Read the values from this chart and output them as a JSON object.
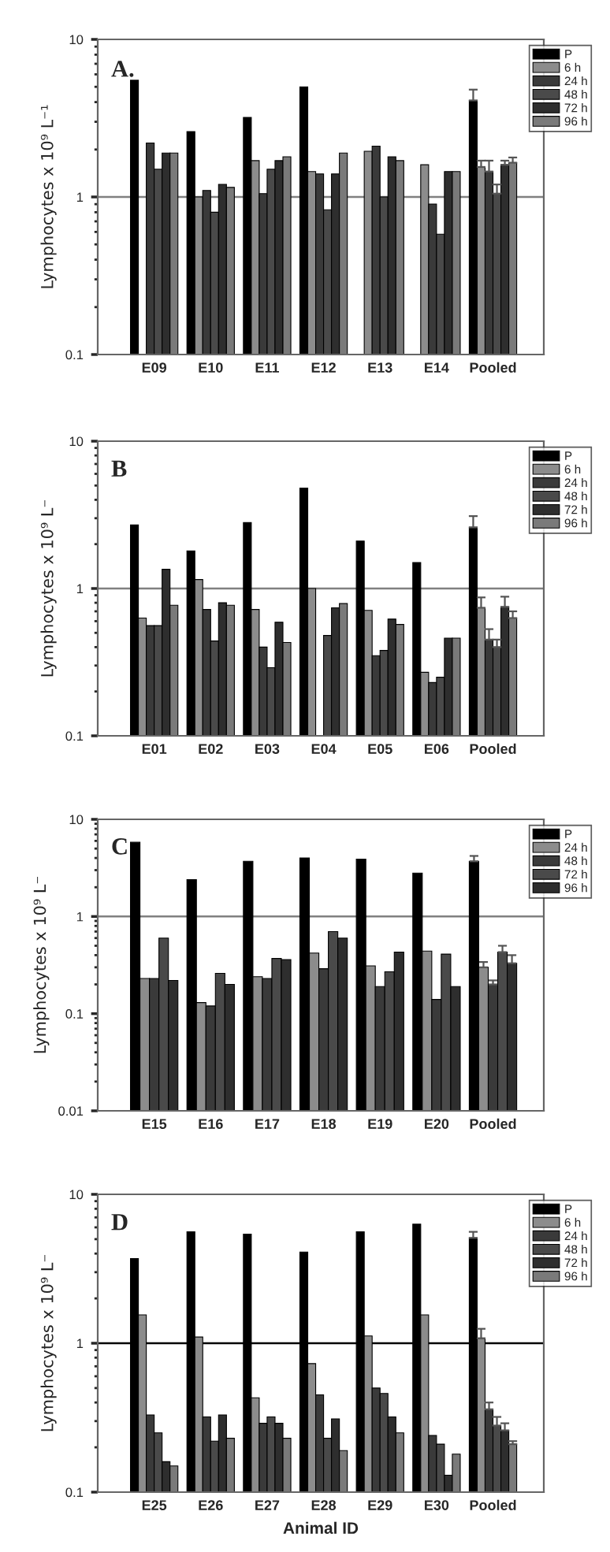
{
  "chart_data": [
    {
      "type": "bar",
      "title": "A.",
      "ylabel": "Lymphocytes x 10⁹ L⁻¹",
      "log": true,
      "ylim": [
        0.1,
        10
      ],
      "yticks": [
        0.1,
        1,
        10
      ],
      "grid": false,
      "legend": "top right",
      "categories": [
        "E09",
        "E10",
        "E11",
        "E12",
        "E13",
        "E14",
        "Pooled"
      ],
      "ref_lines": [
        {
          "axis": "y",
          "value": 1,
          "color": "#808080"
        }
      ],
      "series": [
        {
          "name": "P",
          "color": "#000000",
          "values": [
            5.5,
            2.6,
            3.2,
            5.0,
            null,
            null,
            4.1
          ],
          "errors": [
            null,
            null,
            null,
            null,
            null,
            null,
            0.7
          ]
        },
        {
          "name": "6 h",
          "color": "#8c8c8c",
          "values": [
            null,
            1.0,
            1.7,
            1.45,
            1.95,
            1.6,
            1.55
          ],
          "errors": [
            null,
            null,
            null,
            null,
            null,
            null,
            0.15
          ]
        },
        {
          "name": "24 h",
          "color": "#3a3a3a",
          "values": [
            2.2,
            1.1,
            1.05,
            1.4,
            2.1,
            0.9,
            1.45
          ],
          "errors": [
            null,
            null,
            null,
            null,
            null,
            null,
            0.25
          ]
        },
        {
          "name": "48 h",
          "color": "#4a4a4a",
          "values": [
            1.5,
            0.8,
            1.5,
            0.83,
            1.0,
            0.58,
            1.05
          ],
          "errors": [
            null,
            null,
            null,
            null,
            null,
            null,
            0.15
          ]
        },
        {
          "name": "72 h",
          "color": "#2e2e2e",
          "values": [
            1.9,
            1.2,
            1.7,
            1.4,
            1.8,
            1.45,
            1.6
          ],
          "errors": [
            null,
            null,
            null,
            null,
            null,
            null,
            0.1
          ]
        },
        {
          "name": "96 h",
          "color": "#7a7a7a",
          "values": [
            1.9,
            1.15,
            1.8,
            1.9,
            1.7,
            1.45,
            1.65
          ],
          "errors": [
            null,
            null,
            null,
            null,
            null,
            null,
            0.13
          ]
        }
      ]
    },
    {
      "type": "bar",
      "title": "B",
      "ylabel": "Lymphocytes x 10⁹ L⁻",
      "log": true,
      "ylim": [
        0.1,
        10
      ],
      "yticks": [
        0.1,
        1,
        10
      ],
      "grid": false,
      "legend": "top right",
      "categories": [
        "E01",
        "E02",
        "E03",
        "E04",
        "E05",
        "E06",
        "Pooled"
      ],
      "ref_lines": [
        {
          "axis": "y",
          "value": 1,
          "color": "#808080"
        }
      ],
      "series": [
        {
          "name": "P",
          "color": "#000000",
          "values": [
            2.7,
            1.8,
            2.8,
            4.8,
            2.1,
            1.5,
            2.6
          ],
          "errors": [
            null,
            null,
            null,
            null,
            null,
            null,
            0.5
          ]
        },
        {
          "name": "6 h",
          "color": "#8c8c8c",
          "values": [
            0.63,
            1.15,
            0.72,
            1.0,
            0.71,
            0.27,
            0.74
          ],
          "errors": [
            null,
            null,
            null,
            null,
            null,
            null,
            0.13
          ]
        },
        {
          "name": "24 h",
          "color": "#3a3a3a",
          "values": [
            0.56,
            0.72,
            0.4,
            null,
            0.35,
            0.23,
            0.45
          ],
          "errors": [
            null,
            null,
            null,
            null,
            null,
            null,
            0.08
          ]
        },
        {
          "name": "48 h",
          "color": "#4a4a4a",
          "values": [
            0.56,
            0.44,
            0.29,
            0.48,
            0.38,
            0.25,
            0.4
          ],
          "errors": [
            null,
            null,
            null,
            null,
            null,
            null,
            0.05
          ]
        },
        {
          "name": "72 h",
          "color": "#2e2e2e",
          "values": [
            1.35,
            0.8,
            0.59,
            0.74,
            0.62,
            0.46,
            0.75
          ],
          "errors": [
            null,
            null,
            null,
            null,
            null,
            null,
            0.13
          ]
        },
        {
          "name": "96 h",
          "color": "#7a7a7a",
          "values": [
            0.77,
            0.77,
            0.43,
            0.79,
            0.57,
            0.46,
            0.63
          ],
          "errors": [
            null,
            null,
            null,
            null,
            null,
            null,
            0.07
          ]
        }
      ]
    },
    {
      "type": "bar",
      "title": "C",
      "ylabel": "Lymphocytes x 10⁹ L⁻",
      "log": true,
      "ylim": [
        0.01,
        10
      ],
      "yticks": [
        0.01,
        0.1,
        1,
        10
      ],
      "grid": false,
      "legend": "top right",
      "categories": [
        "E15",
        "E16",
        "E17",
        "E18",
        "E19",
        "E20",
        "Pooled"
      ],
      "ref_lines": [
        {
          "axis": "y",
          "value": 1,
          "color": "#808080"
        }
      ],
      "series": [
        {
          "name": "P",
          "color": "#000000",
          "values": [
            5.8,
            2.4,
            3.7,
            4.0,
            3.9,
            2.8,
            3.7
          ],
          "errors": [
            null,
            null,
            null,
            null,
            null,
            null,
            0.5
          ]
        },
        {
          "name": "24 h",
          "color": "#8c8c8c",
          "values": [
            0.23,
            0.13,
            0.24,
            0.42,
            0.31,
            0.44,
            0.3
          ],
          "errors": [
            null,
            null,
            null,
            null,
            null,
            null,
            0.04
          ]
        },
        {
          "name": "48 h",
          "color": "#3a3a3a",
          "values": [
            0.23,
            0.12,
            0.23,
            0.29,
            0.19,
            0.14,
            0.2
          ],
          "errors": [
            null,
            null,
            null,
            null,
            null,
            null,
            0.02
          ]
        },
        {
          "name": "72 h",
          "color": "#4a4a4a",
          "values": [
            0.6,
            0.26,
            0.37,
            0.7,
            0.27,
            0.41,
            0.43
          ],
          "errors": [
            null,
            null,
            null,
            null,
            null,
            null,
            0.07
          ]
        },
        {
          "name": "96 h",
          "color": "#2e2e2e",
          "values": [
            0.22,
            0.2,
            0.36,
            0.6,
            0.43,
            0.19,
            0.33
          ],
          "errors": [
            null,
            null,
            null,
            null,
            null,
            null,
            0.07
          ]
        }
      ]
    },
    {
      "type": "bar",
      "title": "D",
      "ylabel": "Lymphocytes x 10⁹ L⁻",
      "xlabel": "Animal ID",
      "log": true,
      "ylim": [
        0.1,
        10
      ],
      "yticks": [
        0.1,
        1,
        10
      ],
      "grid": false,
      "legend": "top right",
      "categories": [
        "E25",
        "E26",
        "E27",
        "E28",
        "E29",
        "E30",
        "Pooled"
      ],
      "ref_lines": [
        {
          "axis": "y",
          "value": 1,
          "color": "#000000"
        }
      ],
      "series": [
        {
          "name": "P",
          "color": "#000000",
          "values": [
            3.7,
            5.6,
            5.4,
            4.1,
            5.6,
            6.3,
            5.1
          ],
          "errors": [
            null,
            null,
            null,
            null,
            null,
            null,
            0.5
          ]
        },
        {
          "name": "6 h",
          "color": "#8c8c8c",
          "values": [
            1.55,
            1.1,
            0.43,
            0.73,
            1.12,
            1.55,
            1.08
          ],
          "errors": [
            null,
            null,
            null,
            null,
            null,
            null,
            0.17
          ]
        },
        {
          "name": "24 h",
          "color": "#3a3a3a",
          "values": [
            0.33,
            0.32,
            0.29,
            0.45,
            0.5,
            0.24,
            0.36
          ],
          "errors": [
            null,
            null,
            null,
            null,
            null,
            null,
            0.04
          ]
        },
        {
          "name": "48 h",
          "color": "#4a4a4a",
          "values": [
            0.25,
            0.22,
            0.32,
            0.23,
            0.46,
            0.21,
            0.28
          ],
          "errors": [
            null,
            null,
            null,
            null,
            null,
            null,
            0.04
          ]
        },
        {
          "name": "72 h",
          "color": "#2e2e2e",
          "values": [
            0.16,
            0.33,
            0.29,
            0.31,
            0.32,
            0.13,
            0.26
          ],
          "errors": [
            null,
            null,
            null,
            null,
            null,
            null,
            0.03
          ]
        },
        {
          "name": "96 h",
          "color": "#7a7a7a",
          "values": [
            0.15,
            0.23,
            0.23,
            0.19,
            0.25,
            0.18,
            0.21
          ],
          "errors": [
            null,
            null,
            null,
            null,
            null,
            null,
            0.01
          ]
        }
      ]
    }
  ]
}
